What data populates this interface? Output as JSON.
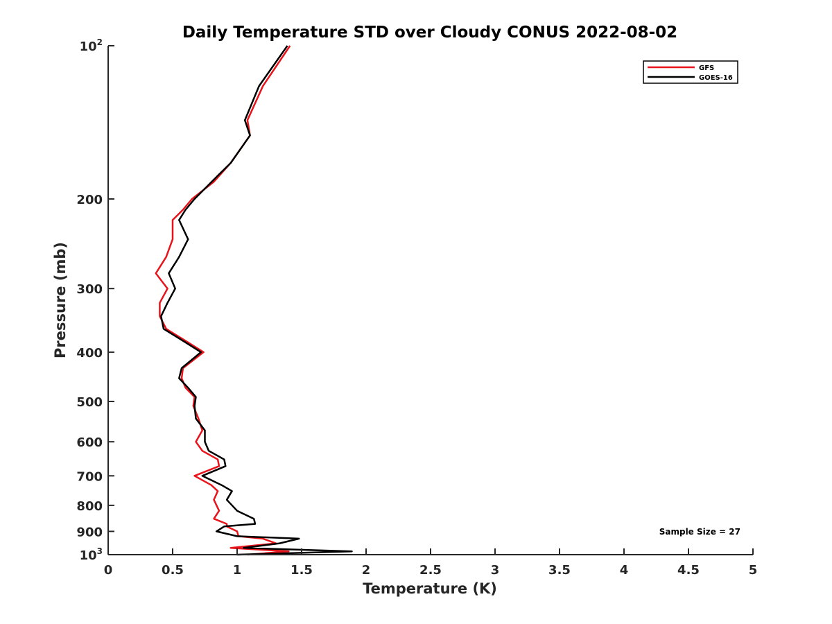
{
  "chart_data": {
    "type": "line",
    "title": "Daily Temperature STD over Cloudy CONUS 2022-08-02",
    "xlabel": "Temperature (K)",
    "ylabel": "Pressure (mb)",
    "xlim": [
      0,
      5
    ],
    "ylim": [
      100,
      1000
    ],
    "y_scale": "log",
    "y_reversed": true,
    "grid": false,
    "legend_position": "top-right",
    "x_ticks": [
      "0",
      "0.5",
      "1",
      "1.5",
      "2",
      "2.5",
      "3",
      "3.5",
      "4",
      "4.5",
      "5"
    ],
    "y_ticks": [
      {
        "value": 100,
        "base": "10",
        "exp": "2"
      },
      {
        "value": 200,
        "label": "200"
      },
      {
        "value": 300,
        "label": "300"
      },
      {
        "value": 400,
        "label": "400"
      },
      {
        "value": 500,
        "label": "500"
      },
      {
        "value": 600,
        "label": "600"
      },
      {
        "value": 700,
        "label": "700"
      },
      {
        "value": 800,
        "label": "800"
      },
      {
        "value": 900,
        "label": "900"
      },
      {
        "value": 1000,
        "base": "10",
        "exp": "3"
      }
    ],
    "annotation": "Sample Size = 27",
    "series": [
      {
        "name": "GFS",
        "color": "#e8141b",
        "points": [
          [
            1.41,
            100
          ],
          [
            1.2,
            120
          ],
          [
            1.08,
            140
          ],
          [
            1.1,
            150
          ],
          [
            0.95,
            170
          ],
          [
            0.82,
            185
          ],
          [
            0.65,
            200
          ],
          [
            0.58,
            210
          ],
          [
            0.5,
            220
          ],
          [
            0.5,
            240
          ],
          [
            0.45,
            260
          ],
          [
            0.37,
            280
          ],
          [
            0.46,
            300
          ],
          [
            0.4,
            320
          ],
          [
            0.4,
            340
          ],
          [
            0.45,
            360
          ],
          [
            0.6,
            380
          ],
          [
            0.74,
            400
          ],
          [
            0.58,
            430
          ],
          [
            0.57,
            450
          ],
          [
            0.6,
            470
          ],
          [
            0.67,
            490
          ],
          [
            0.66,
            510
          ],
          [
            0.7,
            540
          ],
          [
            0.73,
            570
          ],
          [
            0.68,
            600
          ],
          [
            0.73,
            625
          ],
          [
            0.85,
            650
          ],
          [
            0.86,
            670
          ],
          [
            0.67,
            700
          ],
          [
            0.8,
            730
          ],
          [
            0.85,
            750
          ],
          [
            0.82,
            780
          ],
          [
            0.86,
            820
          ],
          [
            0.82,
            850
          ],
          [
            0.92,
            870
          ],
          [
            0.92,
            880
          ],
          [
            1.0,
            900
          ],
          [
            1.01,
            920
          ],
          [
            1.2,
            930
          ],
          [
            1.3,
            950
          ],
          [
            0.95,
            970
          ],
          [
            1.4,
            985
          ],
          [
            1.08,
            1000
          ]
        ]
      },
      {
        "name": "GOES-16",
        "color": "#000000",
        "points": [
          [
            1.39,
            100
          ],
          [
            1.17,
            120
          ],
          [
            1.06,
            140
          ],
          [
            1.1,
            150
          ],
          [
            0.95,
            170
          ],
          [
            0.85,
            180
          ],
          [
            0.67,
            200
          ],
          [
            0.6,
            210
          ],
          [
            0.55,
            220
          ],
          [
            0.62,
            240
          ],
          [
            0.55,
            260
          ],
          [
            0.47,
            280
          ],
          [
            0.52,
            300
          ],
          [
            0.46,
            320
          ],
          [
            0.41,
            340
          ],
          [
            0.43,
            360
          ],
          [
            0.58,
            380
          ],
          [
            0.72,
            400
          ],
          [
            0.57,
            430
          ],
          [
            0.55,
            450
          ],
          [
            0.62,
            470
          ],
          [
            0.68,
            490
          ],
          [
            0.67,
            510
          ],
          [
            0.68,
            540
          ],
          [
            0.75,
            570
          ],
          [
            0.75,
            600
          ],
          [
            0.78,
            625
          ],
          [
            0.9,
            650
          ],
          [
            0.91,
            670
          ],
          [
            0.73,
            700
          ],
          [
            0.88,
            730
          ],
          [
            0.96,
            750
          ],
          [
            0.92,
            780
          ],
          [
            1.0,
            820
          ],
          [
            1.13,
            850
          ],
          [
            1.14,
            870
          ],
          [
            0.9,
            880
          ],
          [
            0.84,
            900
          ],
          [
            1.0,
            920
          ],
          [
            1.48,
            930
          ],
          [
            1.33,
            950
          ],
          [
            1.05,
            970
          ],
          [
            1.89,
            985
          ],
          [
            1.0,
            1000
          ]
        ]
      }
    ]
  }
}
